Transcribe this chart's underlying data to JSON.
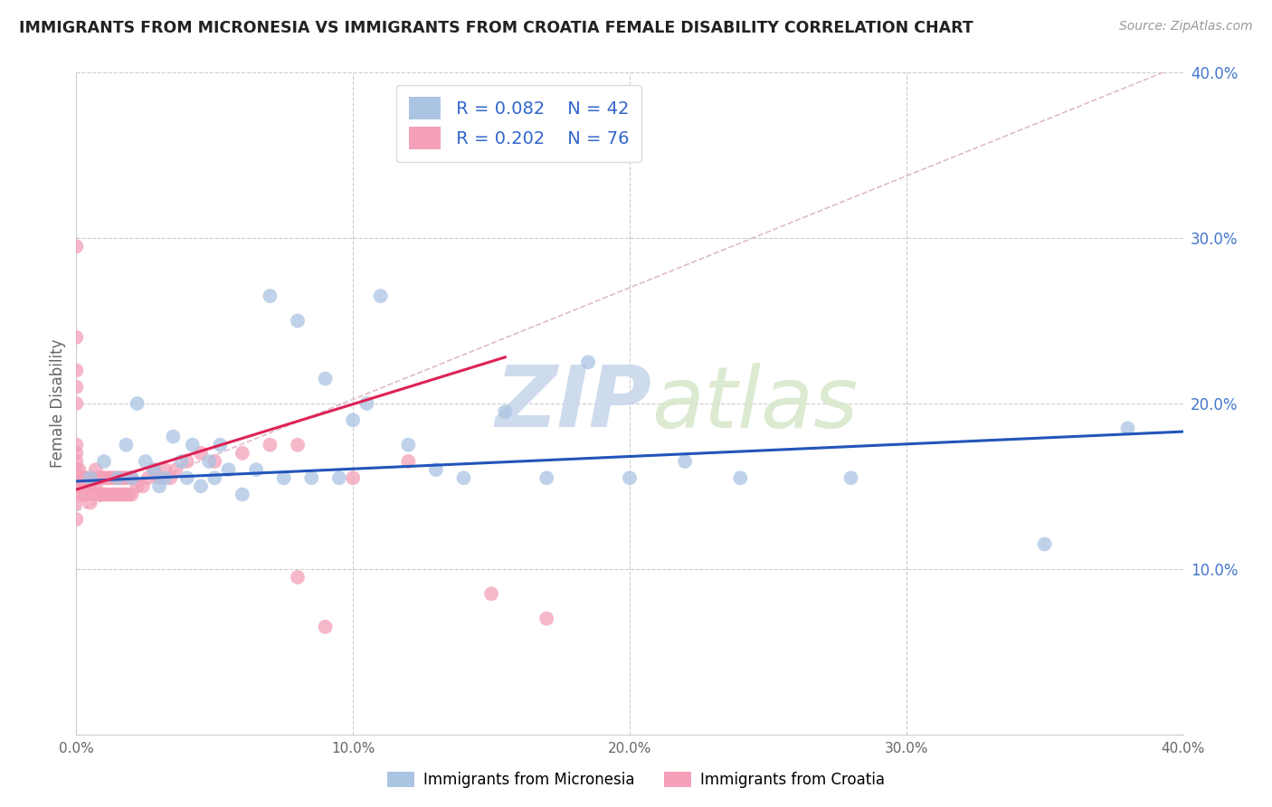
{
  "title": "IMMIGRANTS FROM MICRONESIA VS IMMIGRANTS FROM CROATIA FEMALE DISABILITY CORRELATION CHART",
  "source_text": "Source: ZipAtlas.com",
  "ylabel": "Female Disability",
  "xlim": [
    0.0,
    0.4
  ],
  "ylim": [
    0.0,
    0.4
  ],
  "xtick_vals": [
    0.0,
    0.1,
    0.2,
    0.3,
    0.4
  ],
  "ytick_vals": [
    0.1,
    0.2,
    0.3,
    0.4
  ],
  "xtick_labels": [
    "0.0%",
    "10.0%",
    "20.0%",
    "30.0%",
    "40.0%"
  ],
  "ytick_labels": [
    "10.0%",
    "20.0%",
    "30.0%",
    "40.0%"
  ],
  "blue_R": 0.082,
  "blue_N": 42,
  "pink_R": 0.202,
  "pink_N": 76,
  "blue_color": "#aac4e2",
  "pink_color": "#f4a0b8",
  "blue_line_color": "#2255bb",
  "pink_line_color": "#dd2255",
  "ref_line_color": "#ddbbcc",
  "watermark_zip": "ZIP",
  "watermark_atlas": "atlas",
  "legend_label_blue": "Immigrants from Micronesia",
  "legend_label_pink": "Immigrants from Croatia",
  "blue_scatter_x": [
    0.005,
    0.01,
    0.015,
    0.018,
    0.02,
    0.022,
    0.025,
    0.028,
    0.03,
    0.032,
    0.035,
    0.038,
    0.04,
    0.042,
    0.045,
    0.048,
    0.05,
    0.052,
    0.055,
    0.06,
    0.065,
    0.07,
    0.075,
    0.08,
    0.085,
    0.09,
    0.095,
    0.1,
    0.105,
    0.11,
    0.12,
    0.13,
    0.14,
    0.155,
    0.17,
    0.185,
    0.2,
    0.22,
    0.24,
    0.28,
    0.35,
    0.38
  ],
  "blue_scatter_y": [
    0.155,
    0.165,
    0.155,
    0.175,
    0.155,
    0.2,
    0.165,
    0.16,
    0.15,
    0.155,
    0.18,
    0.165,
    0.155,
    0.175,
    0.15,
    0.165,
    0.155,
    0.175,
    0.16,
    0.145,
    0.16,
    0.265,
    0.155,
    0.25,
    0.155,
    0.215,
    0.155,
    0.19,
    0.2,
    0.265,
    0.175,
    0.16,
    0.155,
    0.195,
    0.155,
    0.225,
    0.155,
    0.165,
    0.155,
    0.155,
    0.115,
    0.185
  ],
  "pink_scatter_x": [
    0.0,
    0.0,
    0.0,
    0.0,
    0.0,
    0.0,
    0.0,
    0.0,
    0.0,
    0.0,
    0.0,
    0.0,
    0.0,
    0.001,
    0.001,
    0.001,
    0.002,
    0.002,
    0.002,
    0.003,
    0.003,
    0.003,
    0.004,
    0.004,
    0.005,
    0.005,
    0.006,
    0.006,
    0.007,
    0.007,
    0.008,
    0.008,
    0.009,
    0.009,
    0.01,
    0.01,
    0.011,
    0.011,
    0.012,
    0.012,
    0.013,
    0.013,
    0.014,
    0.014,
    0.015,
    0.015,
    0.016,
    0.016,
    0.017,
    0.017,
    0.018,
    0.018,
    0.019,
    0.019,
    0.02,
    0.02,
    0.022,
    0.024,
    0.026,
    0.028,
    0.03,
    0.032,
    0.034,
    0.036,
    0.04,
    0.045,
    0.05,
    0.06,
    0.07,
    0.08,
    0.1,
    0.12,
    0.15,
    0.17,
    0.08,
    0.09
  ],
  "pink_scatter_y": [
    0.13,
    0.14,
    0.15,
    0.155,
    0.16,
    0.165,
    0.17,
    0.175,
    0.2,
    0.21,
    0.22,
    0.24,
    0.295,
    0.15,
    0.155,
    0.16,
    0.145,
    0.15,
    0.155,
    0.145,
    0.15,
    0.155,
    0.15,
    0.155,
    0.14,
    0.15,
    0.145,
    0.155,
    0.15,
    0.16,
    0.145,
    0.155,
    0.145,
    0.155,
    0.145,
    0.155,
    0.145,
    0.155,
    0.145,
    0.155,
    0.145,
    0.155,
    0.145,
    0.155,
    0.145,
    0.155,
    0.145,
    0.155,
    0.145,
    0.155,
    0.145,
    0.155,
    0.145,
    0.155,
    0.145,
    0.155,
    0.15,
    0.15,
    0.155,
    0.16,
    0.155,
    0.16,
    0.155,
    0.16,
    0.165,
    0.17,
    0.165,
    0.17,
    0.175,
    0.175,
    0.155,
    0.165,
    0.085,
    0.07,
    0.095,
    0.065
  ]
}
